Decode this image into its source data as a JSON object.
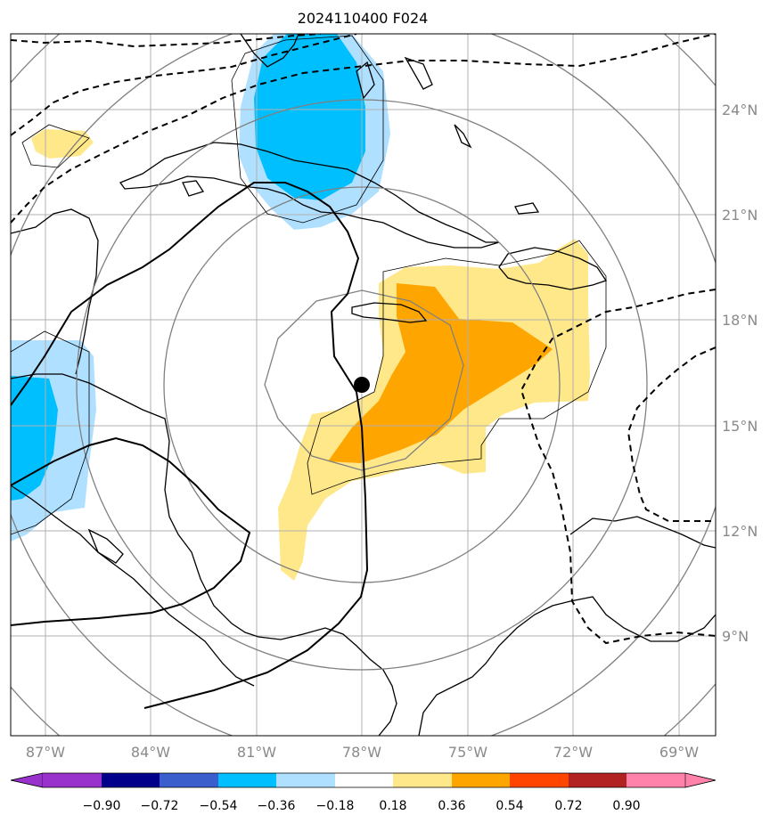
{
  "title": "2024110400 F024",
  "map": {
    "lon_range": [
      -88,
      -67.9
    ],
    "lat_range": [
      6.1,
      26.1
    ],
    "lon_ticks": [
      {
        "value": -87,
        "label": "87°W"
      },
      {
        "value": -84,
        "label": "84°W"
      },
      {
        "value": -81,
        "label": "81°W"
      },
      {
        "value": -78,
        "label": "78°W"
      },
      {
        "value": -75,
        "label": "75°W"
      },
      {
        "value": -72,
        "label": "72°W"
      },
      {
        "value": -69,
        "label": "69°W"
      }
    ],
    "lat_ticks": [
      {
        "value": 9,
        "label": "9°N"
      },
      {
        "value": 12,
        "label": "12°N"
      },
      {
        "value": 15,
        "label": "15°N"
      },
      {
        "value": 18,
        "label": "18°N"
      },
      {
        "value": 21,
        "label": "21°N"
      },
      {
        "value": 24,
        "label": "24°N"
      }
    ],
    "storm_center": {
      "lon": -78.0,
      "lat": 16.1
    },
    "range_rings": [
      "inner",
      "2",
      "3",
      "4",
      "5"
    ],
    "grid": true
  },
  "colorbar": {
    "levels": [
      "−0.90",
      "−0.72",
      "−0.54",
      "−0.36",
      "−0.18",
      "0.18",
      "0.36",
      "0.54",
      "0.72",
      "0.90"
    ],
    "colors": [
      "#9932CC",
      "#00008B",
      "#3A5FCD",
      "#00BFFF",
      "#B0E0FF",
      "#FFFFFF",
      "#FFE88A",
      "#FFA500",
      "#FF4500",
      "#B22222",
      "#FF82AB"
    ]
  }
}
